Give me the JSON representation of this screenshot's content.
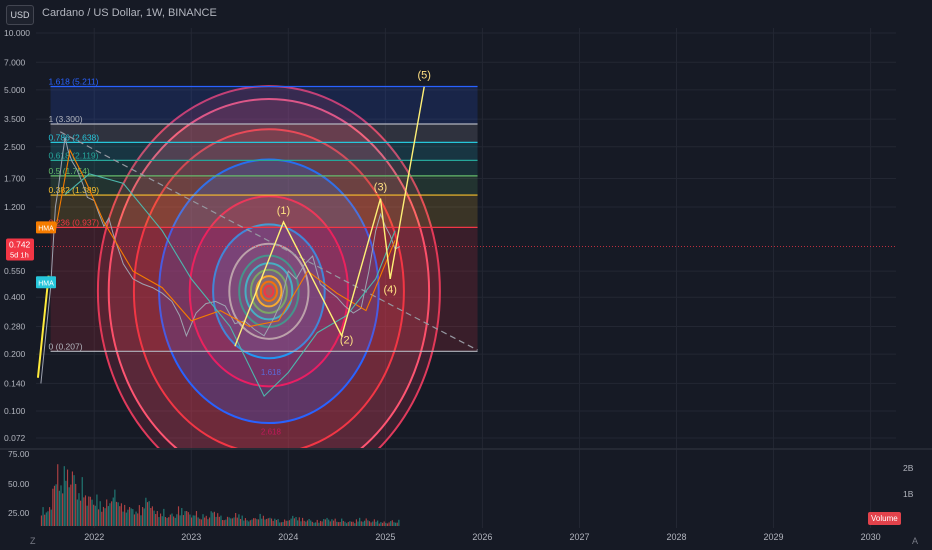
{
  "header": {
    "currency_button": "USD",
    "title": "Cardano / US Dollar, 1W, BINANCE"
  },
  "chart_data": {
    "type": "line",
    "price_axis": {
      "scale": "log",
      "ticks": [
        {
          "label": "10.000",
          "value": 10
        },
        {
          "label": "7.000",
          "value": 7
        },
        {
          "label": "5.000",
          "value": 5
        },
        {
          "label": "3.500",
          "value": 3.5
        },
        {
          "label": "2.500",
          "value": 2.5
        },
        {
          "label": "1.700",
          "value": 1.7
        },
        {
          "label": "1.200",
          "value": 1.2
        },
        {
          "label": "0.550",
          "value": 0.55
        },
        {
          "label": "0.400",
          "value": 0.4
        },
        {
          "label": "0.280",
          "value": 0.28
        },
        {
          "label": "0.200",
          "value": 0.2
        },
        {
          "label": "0.140",
          "value": 0.14
        },
        {
          "label": "0.100",
          "value": 0.1
        },
        {
          "label": "0.072",
          "value": 0.072
        }
      ]
    },
    "time_axis": {
      "labels": [
        "2022",
        "2023",
        "2024",
        "2025",
        "2026",
        "2027",
        "2028",
        "2029",
        "2030"
      ]
    },
    "volume_axis": {
      "labels": [
        "75.00",
        "50.00",
        "25.00"
      ],
      "right_labels": [
        "2B",
        "1B"
      ],
      "badge": "Volume"
    },
    "current_price": {
      "value": 0.742,
      "label": "0.742",
      "countdown": "5d 1h",
      "color": "#f23645"
    },
    "indicators": [
      {
        "label": "HMA",
        "color": "#f57c00"
      },
      {
        "label": "HMA",
        "color": "#26c6da"
      }
    ],
    "fib_levels": [
      {
        "label": "1.618 (5.211)",
        "price": 5.211,
        "color": "#2962ff"
      },
      {
        "label": "1 (3.300)",
        "price": 3.3,
        "color": "#b2b5be"
      },
      {
        "label": "0.786 (2.638)",
        "price": 2.638,
        "color": "#26c6da"
      },
      {
        "label": "0.618 (2.119)",
        "price": 2.119,
        "color": "#26a69a"
      },
      {
        "label": "0.5 (1.754)",
        "price": 1.754,
        "color": "#66bb6a"
      },
      {
        "label": "0.382 (1.389)",
        "price": 1.389,
        "color": "#fbc02d"
      },
      {
        "label": "0.236 (0.937)",
        "price": 0.937,
        "color": "#f23645"
      },
      {
        "label": "0 (0.207)",
        "price": 0.207,
        "color": "#b2b5be"
      }
    ],
    "circle_labels": [
      "1.618",
      "2.618"
    ],
    "wave_labels": [
      {
        "label": "(1)",
        "price": 1.0,
        "date": 2023.95
      },
      {
        "label": "(2)",
        "price": 0.27,
        "date": 2024.6
      },
      {
        "label": "(3)",
        "price": 1.33,
        "date": 2024.95
      },
      {
        "label": "(4)",
        "price": 0.5,
        "date": 2025.05
      },
      {
        "label": "(5)",
        "price": 5.2,
        "date": 2025.4
      }
    ],
    "bottom_left_label": "Z",
    "bottom_right_label": "A"
  }
}
